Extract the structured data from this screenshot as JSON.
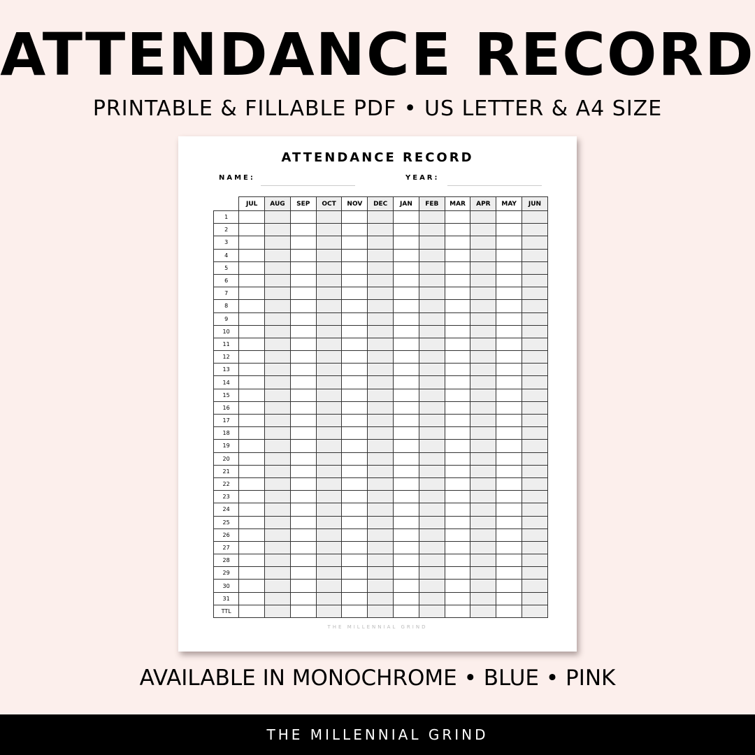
{
  "header": {
    "title": "ATTENDANCE RECORD",
    "subtitle": "PRINTABLE & FILLABLE PDF • US LETTER & A4 SIZE"
  },
  "sheet": {
    "title": "ATTENDANCE RECORD",
    "name_label": "NAME:",
    "year_label": "YEAR:",
    "months": [
      "JUL",
      "AUG",
      "SEP",
      "OCT",
      "NOV",
      "DEC",
      "JAN",
      "FEB",
      "MAR",
      "APR",
      "MAY",
      "JUN"
    ],
    "rows": [
      "1",
      "2",
      "3",
      "4",
      "5",
      "6",
      "7",
      "8",
      "9",
      "10",
      "11",
      "12",
      "13",
      "14",
      "15",
      "16",
      "17",
      "18",
      "19",
      "20",
      "21",
      "22",
      "23",
      "24",
      "25",
      "26",
      "27",
      "28",
      "29",
      "30",
      "31",
      "TTL"
    ],
    "footer": "THE MILLENNIAL GRIND",
    "shade_color": "#eeeeee"
  },
  "bottom_text": "AVAILABLE IN MONOCHROME • BLUE • PINK",
  "brand_bar": "THE MILLENNIAL GRIND"
}
